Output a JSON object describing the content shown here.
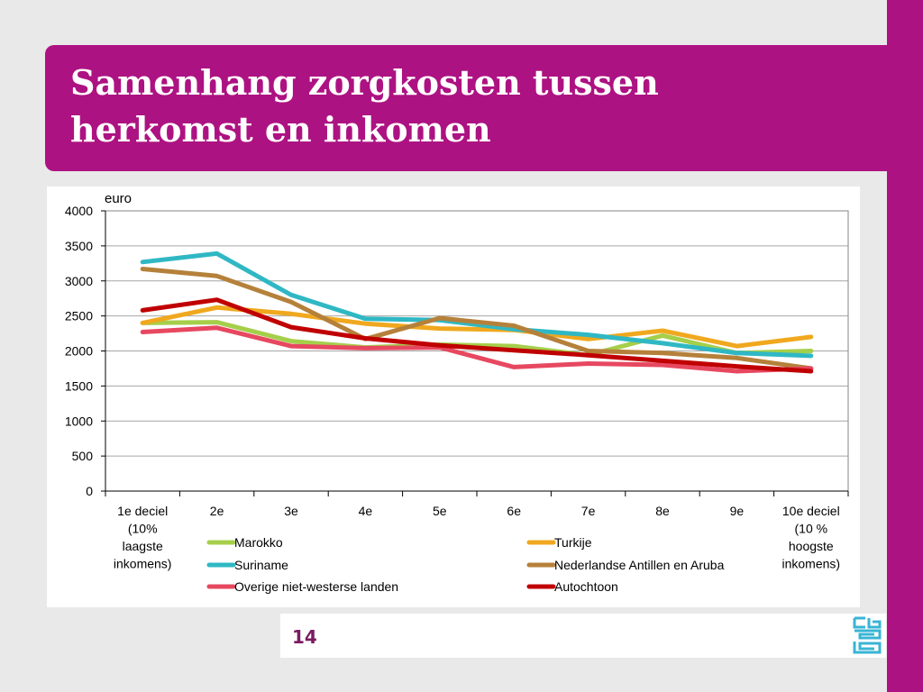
{
  "slide": {
    "title_line1": "Samenhang zorgkosten tussen",
    "title_line2": "herkomst en inkomen",
    "page_number": "14",
    "logo": "cbs-logo-icon",
    "colors": {
      "accent": "#ad1282",
      "page_number": "#7c1b62",
      "logo": "#3ab4d4"
    }
  },
  "chart_data": {
    "type": "line",
    "ylabel": "euro",
    "xlabel": "",
    "ylim": [
      0,
      4000
    ],
    "yticks": [
      0,
      500,
      1000,
      1500,
      2000,
      2500,
      3000,
      3500,
      4000
    ],
    "grid": true,
    "legend_position": "bottom",
    "categories": [
      [
        "1e deciel",
        "(10%",
        "laagste",
        "inkomens)"
      ],
      [
        "2e"
      ],
      [
        "3e"
      ],
      [
        "4e"
      ],
      [
        "5e"
      ],
      [
        "6e"
      ],
      [
        "7e"
      ],
      [
        "8e"
      ],
      [
        "9e"
      ],
      [
        "10e deciel",
        "(10 %",
        "hoogste",
        "inkomens)"
      ]
    ],
    "series": [
      {
        "name": "Marokko",
        "color": "#a5cf4a",
        "values": [
          2400,
          2410,
          2140,
          2050,
          2090,
          2070,
          1940,
          2220,
          1970,
          2000
        ]
      },
      {
        "name": "Turkije",
        "color": "#f0a81e",
        "values": [
          2400,
          2620,
          2530,
          2390,
          2320,
          2300,
          2170,
          2290,
          2070,
          2200
        ]
      },
      {
        "name": "Suriname",
        "color": "#2fb8c4",
        "values": [
          3270,
          3390,
          2800,
          2460,
          2440,
          2310,
          2230,
          2110,
          1970,
          1930
        ]
      },
      {
        "name": "Nederlandse Antillen en Aruba",
        "color": "#b5813a",
        "values": [
          3170,
          3070,
          2700,
          2170,
          2470,
          2360,
          2000,
          1970,
          1900,
          1750
        ]
      },
      {
        "name": "Overige niet-westerse landen",
        "color": "#e74860",
        "values": [
          2270,
          2330,
          2070,
          2040,
          2050,
          1770,
          1820,
          1800,
          1710,
          1750
        ]
      },
      {
        "name": "Autochtoon",
        "color": "#c00000",
        "values": [
          2580,
          2730,
          2340,
          2180,
          2080,
          2010,
          1940,
          1860,
          1780,
          1710
        ]
      }
    ]
  }
}
